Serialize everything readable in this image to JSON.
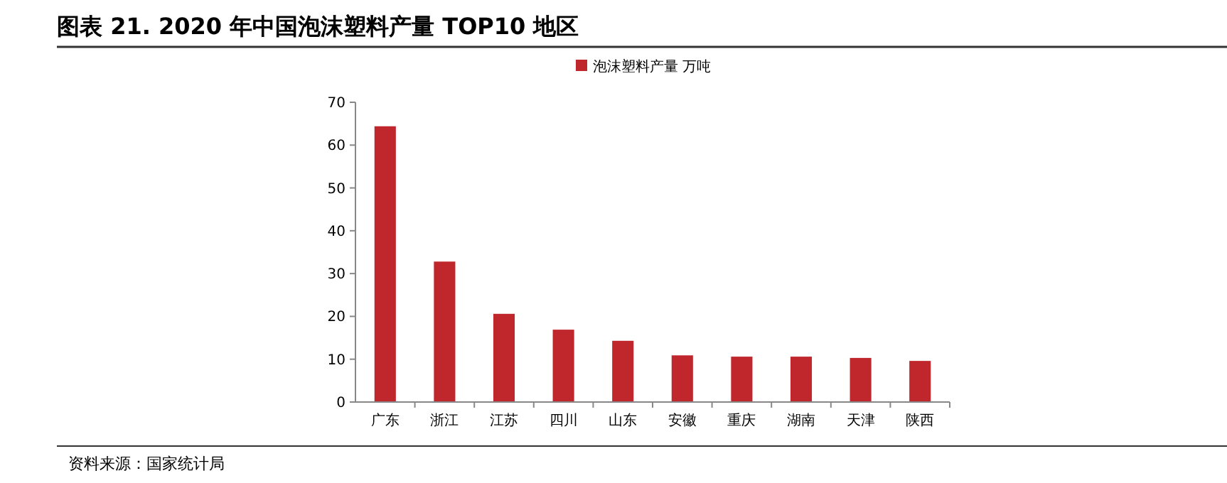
{
  "chart_data": {
    "type": "bar",
    "title": "图表 21. 2020 年中国泡沫塑料产量 TOP10 地区",
    "categories": [
      "广东",
      "浙江",
      "江苏",
      "四川",
      "山东",
      "安徽",
      "重庆",
      "湖南",
      "天津",
      "陕西"
    ],
    "series": [
      {
        "name": "泡沫塑料产量 万吨",
        "color": "#c0272d",
        "values": [
          64.4,
          32.8,
          20.6,
          16.9,
          14.3,
          10.9,
          10.6,
          10.6,
          10.3,
          9.6
        ]
      }
    ],
    "ylim": [
      0,
      70
    ],
    "yticks": [
      0,
      10,
      20,
      30,
      40,
      50,
      60,
      70
    ],
    "grid": false,
    "legend": "top",
    "annotations": [
      "资料来源：国家统计局"
    ]
  }
}
